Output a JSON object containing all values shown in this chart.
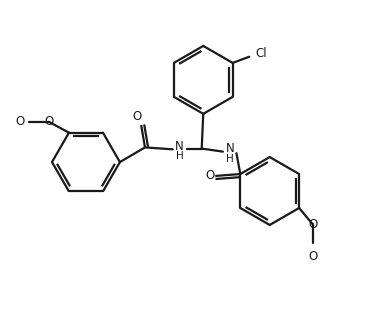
{
  "bg_color": "#ffffff",
  "line_color": "#1a1a1a",
  "line_width": 1.6,
  "font_size": 8.5,
  "fig_width": 3.88,
  "fig_height": 3.28,
  "dpi": 100,
  "xlim": [
    0,
    10
  ],
  "ylim": [
    0,
    8.5
  ]
}
